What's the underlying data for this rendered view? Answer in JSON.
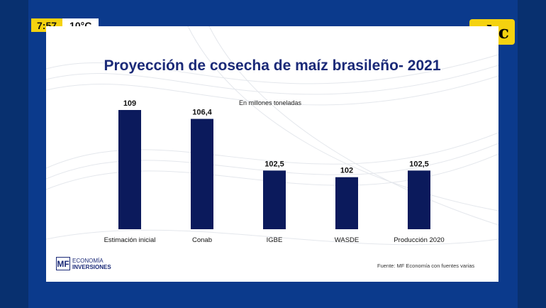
{
  "overlay": {
    "time": "7:57",
    "temperature": "10°C",
    "channel_logo": "abc",
    "colors": {
      "ticker_yellow": "#f5d20f",
      "background_blue": "#0b3a8c"
    }
  },
  "slide": {
    "source_note": "Fuente: MF Economía con fuentes varias",
    "brand": {
      "line1": "ECONOMÍA",
      "line2": "INVERSIONES",
      "mark": "MF"
    }
  },
  "chart_data": {
    "type": "bar",
    "title": "Proyección de cosecha de maíz brasileño- 2021",
    "subtitle": "En millones toneladas",
    "categories": [
      "Estimación inicial",
      "Conab",
      "IGBE",
      "WASDE",
      "Producción 2020"
    ],
    "values": [
      109,
      106.4,
      102.5,
      102,
      102.5
    ],
    "value_labels": [
      "109",
      "106,4",
      "102,5",
      "102",
      "102,5"
    ],
    "bar_color": "#0b1a5c",
    "ylim": [
      100,
      109
    ],
    "xlabel": "",
    "ylabel": "",
    "grid": false
  }
}
